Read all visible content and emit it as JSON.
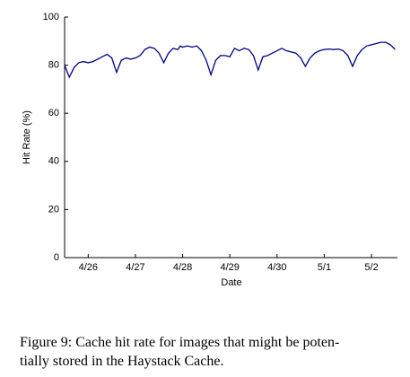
{
  "chart_data": {
    "type": "line",
    "xlabel": "Date",
    "ylabel": "Hit Rate (%)",
    "xlim": [
      -0.5,
      6.55
    ],
    "ylim": [
      0,
      100
    ],
    "yticks": [
      0,
      20,
      40,
      60,
      80,
      100
    ],
    "xticks": [
      {
        "value": 0,
        "label": "4/26"
      },
      {
        "value": 1,
        "label": "4/27"
      },
      {
        "value": 2,
        "label": "4/28"
      },
      {
        "value": 3,
        "label": "4/29"
      },
      {
        "value": 4,
        "label": "4/30"
      },
      {
        "value": 5,
        "label": "5/1"
      },
      {
        "value": 6,
        "label": "5/2"
      }
    ],
    "x": [
      -0.5,
      -0.4,
      -0.3,
      -0.2,
      -0.1,
      0,
      0.1,
      0.2,
      0.3,
      0.4,
      0.5,
      0.6,
      0.7,
      0.8,
      0.9,
      1.0,
      1.1,
      1.2,
      1.3,
      1.4,
      1.5,
      1.6,
      1.7,
      1.8,
      1.9,
      1.95,
      2.0,
      2.1,
      2.2,
      2.3,
      2.4,
      2.5,
      2.6,
      2.7,
      2.8,
      2.9,
      3.0,
      3.1,
      3.2,
      3.3,
      3.4,
      3.5,
      3.6,
      3.7,
      3.8,
      3.9,
      4.0,
      4.1,
      4.2,
      4.3,
      4.4,
      4.5,
      4.6,
      4.7,
      4.8,
      4.9,
      5.0,
      5.1,
      5.2,
      5.3,
      5.4,
      5.5,
      5.6,
      5.7,
      5.8,
      5.9,
      6.0,
      6.1,
      6.2,
      6.3,
      6.4,
      6.5
    ],
    "series": [
      {
        "color": "#00008b",
        "values": [
          80,
          75,
          79,
          81,
          81.5,
          81,
          81.5,
          82.5,
          83.5,
          84.5,
          83,
          77,
          82,
          83,
          82.5,
          83,
          84,
          86.5,
          87.5,
          87,
          85,
          81,
          85,
          87,
          86.5,
          88,
          87.5,
          88,
          87.5,
          88,
          86,
          82,
          76,
          82,
          84,
          84,
          83.5,
          87,
          86,
          87,
          86.5,
          84,
          78,
          83.5,
          84,
          85,
          86,
          87,
          86,
          85.5,
          85,
          83,
          79.5,
          83,
          85,
          86,
          86.5,
          86.7,
          86.5,
          86.7,
          86,
          84,
          79.5,
          84,
          86.5,
          88,
          88.5,
          89,
          89.5,
          89.5,
          88.5,
          86.5
        ]
      }
    ],
    "caption": [
      "Figure 9: Cache hit rate for images that might be poten-",
      "tially stored in the Haystack Cache."
    ]
  }
}
